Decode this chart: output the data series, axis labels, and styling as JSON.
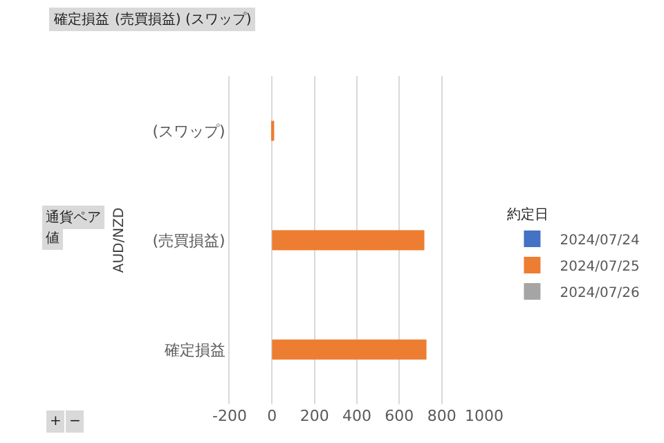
{
  "chart_data": {
    "type": "bar",
    "orientation": "horizontal",
    "categories": [
      "(スワップ)",
      "(売買損益)",
      "確定損益"
    ],
    "series": [
      {
        "name": "2024/07/24",
        "color": "#4472c4",
        "values": [
          null,
          null,
          null
        ]
      },
      {
        "name": "2024/07/25",
        "color": "#ed7d31",
        "values": [
          10,
          718,
          728
        ]
      },
      {
        "name": "2024/07/26",
        "color": "#a5a5a5",
        "values": [
          null,
          null,
          null
        ]
      }
    ],
    "xlim": [
      -200,
      1000
    ],
    "xticks": [
      -200,
      0,
      200,
      400,
      600,
      800,
      1000
    ],
    "ylabel": "AUD/NZD",
    "legend_title": "約定日",
    "legend": "right",
    "grid": "x",
    "annotations": [
      "確定損益",
      "(売買損益)",
      "(スワップ)",
      "通貨ペア",
      "値",
      "+",
      "−"
    ]
  }
}
